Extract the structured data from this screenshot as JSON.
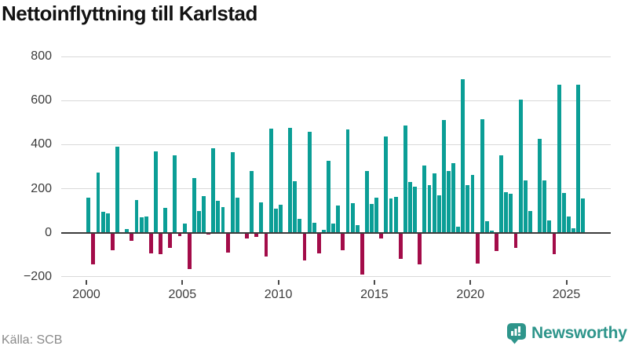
{
  "title": "Nettoinflyttning till Karlstad",
  "source": {
    "label": "Källa: SCB"
  },
  "brand": {
    "name": "Newsworthy"
  },
  "colors": {
    "positive": "#0b9e96",
    "negative": "#a30c49",
    "grid": "#d9d9d9",
    "zero_line": "#3c3c3c",
    "axis_text": "#3c3c3c",
    "title_text": "#121212",
    "source_text": "#8a8a8a",
    "brand_teal": "#2e958b",
    "background": "#ffffff"
  },
  "chart_data": {
    "type": "bar",
    "title": "Nettoinflyttning till Karlstad",
    "frequency": "quarterly",
    "start": "2000-Q1",
    "end": "2025-Q4",
    "xlabel": "",
    "ylabel": "",
    "ylim": [
      -245,
      835
    ],
    "grid": true,
    "zero_line": true,
    "y_ticks": [
      {
        "label": "800",
        "value": 800
      },
      {
        "label": "600",
        "value": 600
      },
      {
        "label": "400",
        "value": 400
      },
      {
        "label": "200",
        "value": 200
      },
      {
        "label": "0",
        "value": 0
      },
      {
        "label": "−200",
        "value": -200
      }
    ],
    "x_ticks": [
      "2000",
      "2005",
      "2010",
      "2015",
      "2020",
      "2025"
    ],
    "values": [
      160,
      -145,
      275,
      95,
      88,
      -80,
      390,
      0,
      15,
      -35,
      150,
      70,
      72,
      -95,
      370,
      -98,
      112,
      -68,
      350,
      -15,
      41,
      -165,
      250,
      97,
      165,
      -10,
      385,
      144,
      115,
      -90,
      365,
      160,
      0,
      -25,
      282,
      -19,
      138,
      -108,
      472,
      111,
      126,
      0,
      477,
      235,
      64,
      -126,
      458,
      45,
      -92,
      12,
      327,
      42,
      122,
      -80,
      469,
      135,
      35,
      -190,
      281,
      130,
      160,
      -27,
      438,
      157,
      164,
      -119,
      486,
      231,
      210,
      -142,
      307,
      215,
      269,
      171,
      513,
      280,
      316,
      26,
      696,
      216,
      262,
      -139,
      517,
      53,
      11,
      -83,
      352,
      185,
      177,
      -68,
      604,
      238,
      97,
      0,
      427,
      239,
      55,
      -98,
      674,
      182,
      73,
      22,
      672,
      155
    ]
  }
}
